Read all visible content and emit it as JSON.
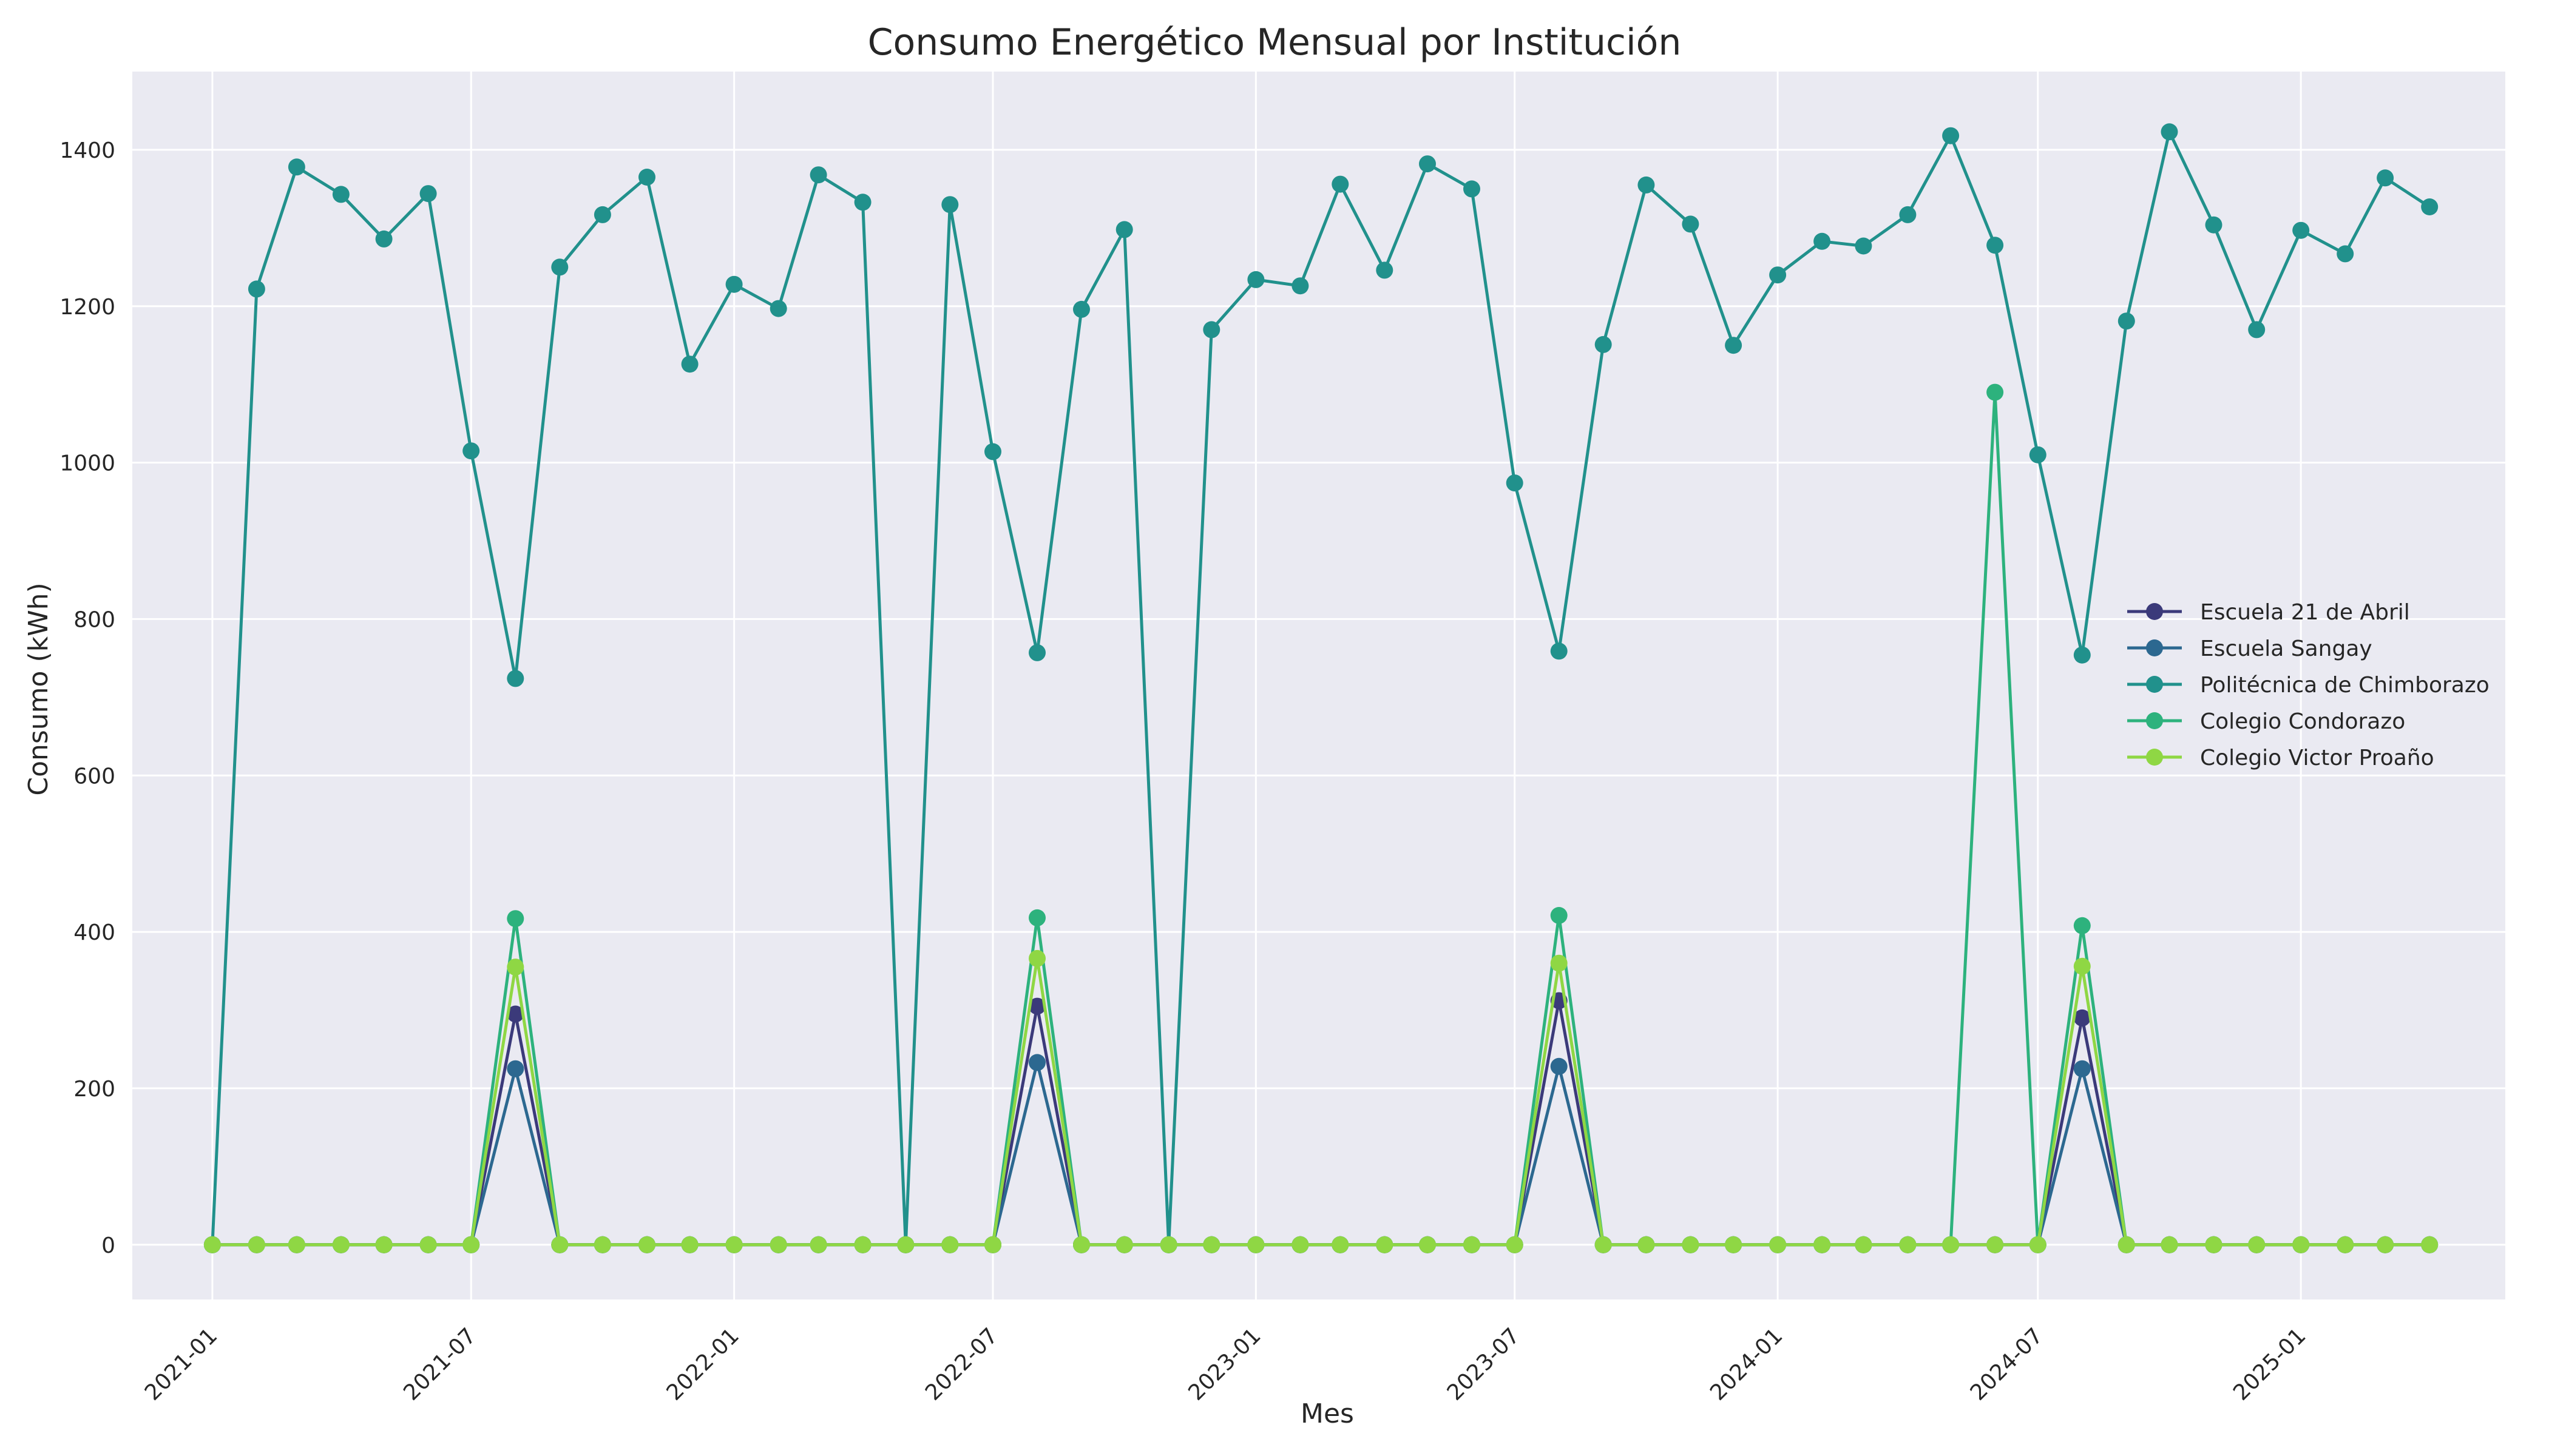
{
  "chart_data": {
    "type": "line",
    "title": "Consumo Energético Mensual por Institución",
    "xlabel": "Mes",
    "ylabel": "Consumo (kWh)",
    "ylim": [
      -70,
      1500
    ],
    "yticks": [
      0,
      200,
      400,
      600,
      800,
      1000,
      1200,
      1400
    ],
    "xticks": [
      "2021-01",
      "2021-07",
      "2022-01",
      "2022-07",
      "2023-01",
      "2023-07",
      "2024-01",
      "2024-07",
      "2025-01"
    ],
    "xlim": [
      "2020-11-06",
      "2025-05-24"
    ],
    "grid": true,
    "legend_position": "right",
    "x": [
      "2021-01",
      "2021-02",
      "2021-03",
      "2021-04",
      "2021-05",
      "2021-06",
      "2021-07",
      "2021-08",
      "2021-09",
      "2021-10",
      "2021-11",
      "2021-12",
      "2022-01",
      "2022-02",
      "2022-03",
      "2022-04",
      "2022-05",
      "2022-06",
      "2022-07",
      "2022-08",
      "2022-09",
      "2022-10",
      "2022-11",
      "2022-12",
      "2023-01",
      "2023-02",
      "2023-03",
      "2023-04",
      "2023-05",
      "2023-06",
      "2023-07",
      "2023-08",
      "2023-09",
      "2023-10",
      "2023-11",
      "2023-12",
      "2024-01",
      "2024-02",
      "2024-03",
      "2024-04",
      "2024-05",
      "2024-06",
      "2024-07",
      "2024-08",
      "2024-09",
      "2024-10",
      "2024-11",
      "2024-12",
      "2025-01",
      "2025-02",
      "2025-03",
      "2025-04"
    ],
    "series": [
      {
        "name": "Escuela 21 de Abril",
        "color": "#3b3a7a",
        "values": [
          0,
          0,
          0,
          0,
          0,
          0,
          0,
          295,
          0,
          0,
          0,
          0,
          0,
          0,
          0,
          0,
          0,
          0,
          0,
          305,
          0,
          0,
          0,
          0,
          0,
          0,
          0,
          0,
          0,
          0,
          0,
          312,
          0,
          0,
          0,
          0,
          0,
          0,
          0,
          0,
          0,
          0,
          0,
          290,
          0,
          0,
          0,
          0,
          0,
          0,
          0,
          0
        ]
      },
      {
        "name": "Escuela Sangay",
        "color": "#2c6890",
        "values": [
          0,
          0,
          0,
          0,
          0,
          0,
          0,
          225,
          0,
          0,
          0,
          0,
          0,
          0,
          0,
          0,
          0,
          0,
          0,
          233,
          0,
          0,
          0,
          0,
          0,
          0,
          0,
          0,
          0,
          0,
          0,
          228,
          0,
          0,
          0,
          0,
          0,
          0,
          0,
          0,
          0,
          0,
          0,
          225,
          0,
          0,
          0,
          0,
          0,
          0,
          0,
          0
        ]
      },
      {
        "name": "Politécnica de Chimborazo",
        "color": "#21918c",
        "values": [
          0,
          1222,
          1378,
          1343,
          1286,
          1344,
          1015,
          724,
          1250,
          1317,
          1365,
          1126,
          1228,
          1197,
          1368,
          1333,
          0,
          1330,
          1014,
          757,
          1196,
          1298,
          0,
          1170,
          1234,
          1226,
          1356,
          1246,
          1382,
          1350,
          974,
          759,
          1151,
          1355,
          1305,
          1150,
          1240,
          1283,
          1277,
          1317,
          1418,
          1278,
          1010,
          754,
          1181,
          1423,
          1304,
          1170,
          1297,
          1267,
          1364,
          1327
        ]
      },
      {
        "name": "Colegio Condorazo",
        "color": "#2db27d",
        "values": [
          0,
          0,
          0,
          0,
          0,
          0,
          0,
          417,
          0,
          0,
          0,
          0,
          0,
          0,
          0,
          0,
          0,
          0,
          0,
          418,
          0,
          0,
          0,
          0,
          0,
          0,
          0,
          0,
          0,
          0,
          0,
          421,
          0,
          0,
          0,
          0,
          0,
          0,
          0,
          0,
          0,
          1090,
          0,
          408,
          0,
          0,
          0,
          0,
          0,
          0,
          0,
          0
        ]
      },
      {
        "name": "Colegio Victor Proaño",
        "color": "#8fd744",
        "values": [
          0,
          0,
          0,
          0,
          0,
          0,
          0,
          355,
          0,
          0,
          0,
          0,
          0,
          0,
          0,
          0,
          0,
          0,
          0,
          366,
          0,
          0,
          0,
          0,
          0,
          0,
          0,
          0,
          0,
          0,
          0,
          360,
          0,
          0,
          0,
          0,
          0,
          0,
          0,
          0,
          0,
          0,
          0,
          356,
          0,
          0,
          0,
          0,
          0,
          0,
          0,
          0
        ]
      }
    ]
  },
  "style": {
    "plot_background": "#eaeaf2",
    "grid_color": "#ffffff",
    "text_color": "#262626"
  }
}
